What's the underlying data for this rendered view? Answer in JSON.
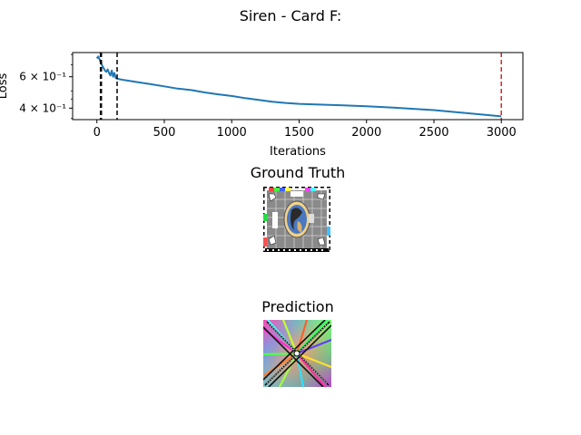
{
  "figure": {
    "suptitle": "Siren - Card F:",
    "ground_truth_title": "Ground Truth",
    "prediction_title": "Prediction"
  },
  "chart_data": {
    "type": "line",
    "title": "",
    "xlabel": "Iterations",
    "ylabel": "Loss",
    "yscale": "log",
    "xlim": [
      -180,
      3160
    ],
    "ylim": [
      0.345,
      0.82
    ],
    "xticks": [
      0,
      500,
      1000,
      1500,
      2000,
      2500,
      3000
    ],
    "xtick_labels": [
      "0",
      "500",
      "1000",
      "1500",
      "2000",
      "2500",
      "3000"
    ],
    "yticks": [
      0.4,
      0.6
    ],
    "ytick_labels": [
      "4 × 10⁻¹",
      "6 × 10⁻¹"
    ],
    "line_color": "#1f77b4",
    "series": [
      {
        "x": [
          0,
          10,
          20,
          30,
          40,
          50,
          60,
          70,
          80,
          90,
          100,
          110,
          120,
          130,
          140,
          150,
          200,
          300,
          400,
          500,
          600,
          700,
          800,
          900,
          1000,
          1100,
          1200,
          1300,
          1400,
          1500,
          1700,
          2000,
          2200,
          2500,
          2700,
          3000
        ],
        "y": [
          0.76,
          0.78,
          0.75,
          0.72,
          0.69,
          0.67,
          0.65,
          0.64,
          0.66,
          0.63,
          0.61,
          0.65,
          0.6,
          0.63,
          0.59,
          0.585,
          0.575,
          0.56,
          0.545,
          0.53,
          0.515,
          0.505,
          0.49,
          0.478,
          0.468,
          0.455,
          0.445,
          0.435,
          0.428,
          0.423,
          0.418,
          0.41,
          0.403,
          0.39,
          0.378,
          0.36
        ]
      }
    ],
    "vlines": [
      {
        "x": 30,
        "color": "#000000",
        "style": "dashed",
        "weight": "bold"
      },
      {
        "x": 150,
        "color": "#000000",
        "style": "dashed",
        "weight": "normal"
      },
      {
        "x": 3000,
        "color": "#d62728",
        "style": "dashed",
        "weight": "normal"
      }
    ],
    "grid": false
  }
}
